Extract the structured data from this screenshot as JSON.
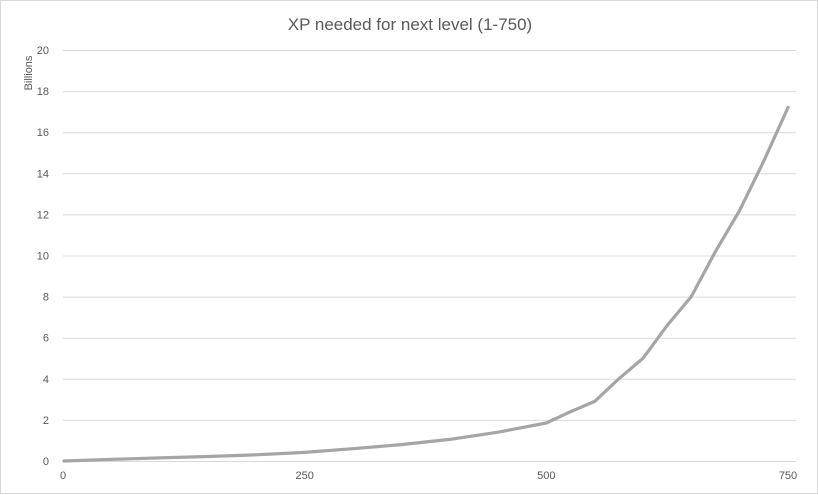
{
  "chart_data": {
    "type": "line",
    "title": "XP needed for next level (1-750)",
    "xlabel": "",
    "ylabel": "",
    "y_unit_label": "Billions",
    "xlim": [
      0,
      750
    ],
    "ylim": [
      0,
      20
    ],
    "x_ticks": [
      0,
      250,
      500,
      750
    ],
    "y_ticks": [
      0,
      2,
      4,
      6,
      8,
      10,
      12,
      14,
      16,
      18,
      20
    ],
    "grid": true,
    "legend": "none",
    "series_color": "#a5a5a5",
    "series": [
      {
        "x": [
          1,
          50,
          100,
          150,
          200,
          250,
          300,
          350,
          400,
          450,
          500,
          525,
          550,
          575,
          600,
          625,
          650,
          675,
          700,
          725,
          750
        ],
        "y": [
          0.0,
          0.08,
          0.15,
          0.22,
          0.3,
          0.42,
          0.6,
          0.8,
          1.05,
          1.4,
          1.85,
          2.4,
          2.9,
          4.0,
          5.0,
          6.6,
          8.0,
          10.2,
          12.2,
          14.6,
          17.2
        ]
      }
    ]
  }
}
